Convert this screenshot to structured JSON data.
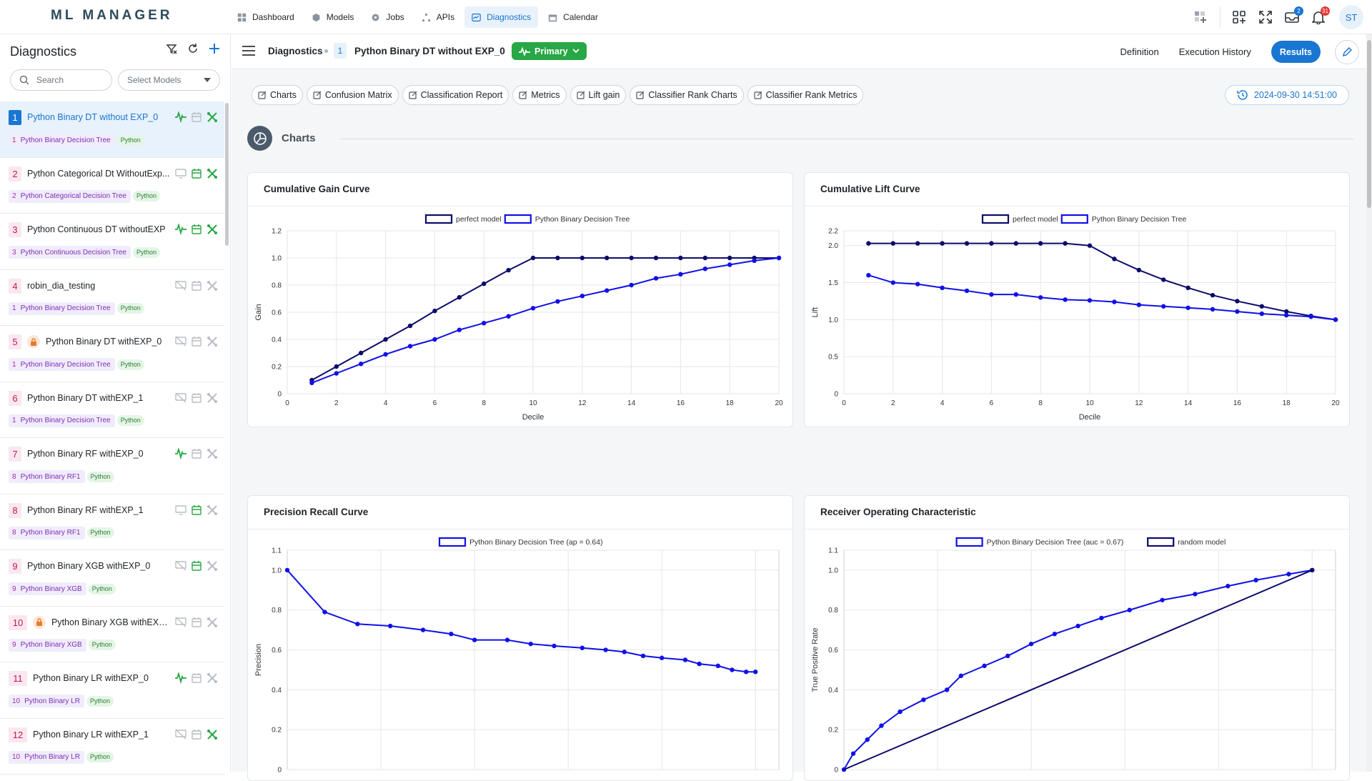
{
  "app": {
    "brand": "ML MANAGER"
  },
  "nav": [
    {
      "label": "Dashboard",
      "icon": "dashboard-icon"
    },
    {
      "label": "Models",
      "icon": "models-icon"
    },
    {
      "label": "Jobs",
      "icon": "jobs-icon"
    },
    {
      "label": "APIs",
      "icon": "apis-icon"
    },
    {
      "label": "Diagnostics",
      "icon": "diagnostics-icon",
      "active": true
    },
    {
      "label": "Calendar",
      "icon": "calendar-icon"
    }
  ],
  "topbar": {
    "messages_badge": "2",
    "notifications_badge": "31",
    "avatar": "ST"
  },
  "colors": {
    "accent": "#1976d2",
    "success": "#28a745",
    "pink": "#c2185b",
    "purple": "#7b2fb5",
    "perfect_line": "#0b0b6b",
    "model_line": "#1010e8"
  },
  "sidebar": {
    "title": "Diagnostics",
    "search_placeholder": "Search",
    "select_placeholder": "Select Models",
    "items": [
      {
        "num": "1",
        "name": "Python Binary DT without EXP_0",
        "sub_num": "1",
        "model": "Python Binary Decision Tree",
        "lang": "Python",
        "lock": false,
        "selected": true,
        "status": [
          "pulse-green",
          "calendar-grey",
          "tools-green"
        ]
      },
      {
        "num": "2",
        "name": "Python Categorical Dt WithoutExp...",
        "sub_num": "2",
        "model": "Python Categorical Decision Tree",
        "lang": "Python",
        "lock": false,
        "selected": false,
        "status": [
          "monitor-grey",
          "calendar-green",
          "tools-green"
        ]
      },
      {
        "num": "3",
        "name": "Python Continuous DT withoutEXP",
        "sub_num": "3",
        "model": "Python Continuous Decision Tree",
        "lang": "Python",
        "lock": false,
        "selected": false,
        "status": [
          "pulse-green",
          "calendar-green",
          "tools-green"
        ]
      },
      {
        "num": "4",
        "name": "robin_dia_testing",
        "sub_num": "1",
        "model": "Python Binary Decision Tree",
        "lang": "Python",
        "lock": false,
        "selected": false,
        "status": [
          "monitor-off-grey",
          "calendar-grey",
          "tools-grey"
        ]
      },
      {
        "num": "5",
        "name": "Python Binary DT withEXP_0",
        "sub_num": "1",
        "model": "Python Binary Decision Tree",
        "lang": "Python",
        "lock": true,
        "selected": false,
        "status": [
          "monitor-off-grey",
          "calendar-grey",
          "tools-grey"
        ]
      },
      {
        "num": "6",
        "name": "Python Binary DT withEXP_1",
        "sub_num": "1",
        "model": "Python Binary Decision Tree",
        "lang": "Python",
        "lock": false,
        "selected": false,
        "status": [
          "monitor-off-grey",
          "calendar-grey",
          "tools-grey"
        ]
      },
      {
        "num": "7",
        "name": "Python Binary RF withEXP_0",
        "sub_num": "8",
        "model": "Python Binary RF1",
        "lang": "Python",
        "lock": false,
        "selected": false,
        "status": [
          "pulse-green",
          "calendar-grey",
          "tools-grey"
        ]
      },
      {
        "num": "8",
        "name": "Python Binary RF withEXP_1",
        "sub_num": "8",
        "model": "Python Binary RF1",
        "lang": "Python",
        "lock": false,
        "selected": false,
        "status": [
          "monitor-grey",
          "calendar-green",
          "tools-grey"
        ]
      },
      {
        "num": "9",
        "name": "Python Binary XGB withEXP_0",
        "sub_num": "9",
        "model": "Python Binary XGB",
        "lang": "Python",
        "lock": false,
        "selected": false,
        "status": [
          "monitor-off-grey",
          "calendar-green",
          "tools-grey"
        ]
      },
      {
        "num": "10",
        "name": "Python Binary XGB withEXP_1",
        "sub_num": "9",
        "model": "Python Binary XGB",
        "lang": "Python",
        "lock": true,
        "selected": false,
        "status": [
          "monitor-off-grey",
          "calendar-grey",
          "tools-grey"
        ]
      },
      {
        "num": "11",
        "name": "Python Binary LR withEXP_0",
        "sub_num": "10",
        "model": "Python Binary LR",
        "lang": "Python",
        "lock": false,
        "selected": false,
        "status": [
          "pulse-green",
          "calendar-grey",
          "tools-grey"
        ]
      },
      {
        "num": "12",
        "name": "Python Binary LR withEXP_1",
        "sub_num": "10",
        "model": "Python Binary LR",
        "lang": "Python",
        "lock": false,
        "selected": false,
        "status": [
          "monitor-off-grey",
          "calendar-grey",
          "tools-green"
        ]
      }
    ]
  },
  "header": {
    "breadcrumb": "Diagnostics",
    "model_num": "1",
    "model_name": "Python Binary DT without EXP_0",
    "primary_label": "Primary",
    "definition_label": "Definition",
    "history_label": "Execution History",
    "results_label": "Results"
  },
  "tabs": [
    "Charts",
    "Confusion Matrix",
    "Classification Report",
    "Metrics",
    "Lift gain",
    "Classifier Rank Charts",
    "Classifier Rank Metrics"
  ],
  "run_date": "2024-09-30 14:51:00",
  "section_title": "Charts",
  "chart_data": [
    {
      "type": "line",
      "title": "Cumulative Gain Curve",
      "xlabel": "Decile",
      "ylabel": "Gain",
      "xlim": [
        0,
        20
      ],
      "ylim": [
        0,
        1.2
      ],
      "xticks": [
        "0",
        "2",
        "4",
        "6",
        "8",
        "10",
        "12",
        "14",
        "16",
        "18",
        "20"
      ],
      "yticks": [
        "0",
        "0.2",
        "0.4",
        "0.6",
        "0.8",
        "1.0",
        "1.2"
      ],
      "legend": "top-center",
      "series": [
        {
          "name": "perfect model",
          "x": [
            1,
            2,
            3,
            4,
            5,
            6,
            7,
            8,
            9,
            10,
            11,
            12,
            13,
            14,
            15,
            16,
            17,
            18,
            19,
            20
          ],
          "y": [
            0.1,
            0.2,
            0.3,
            0.4,
            0.5,
            0.61,
            0.71,
            0.81,
            0.91,
            1.0,
            1.0,
            1.0,
            1.0,
            1.0,
            1.0,
            1.0,
            1.0,
            1.0,
            1.0,
            1.0
          ]
        },
        {
          "name": "Python Binary Decision Tree",
          "x": [
            1,
            2,
            3,
            4,
            5,
            6,
            7,
            8,
            9,
            10,
            11,
            12,
            13,
            14,
            15,
            16,
            17,
            18,
            19,
            20
          ],
          "y": [
            0.08,
            0.15,
            0.22,
            0.29,
            0.35,
            0.4,
            0.47,
            0.52,
            0.57,
            0.63,
            0.68,
            0.72,
            0.76,
            0.8,
            0.85,
            0.88,
            0.92,
            0.95,
            0.98,
            1.0
          ]
        }
      ]
    },
    {
      "type": "line",
      "title": "Cumulative Lift Curve",
      "xlabel": "Decile",
      "ylabel": "Lift",
      "xlim": [
        0,
        20
      ],
      "ylim": [
        0,
        2.2
      ],
      "xticks": [
        "0",
        "2",
        "4",
        "6",
        "8",
        "10",
        "12",
        "14",
        "16",
        "18",
        "20"
      ],
      "yticks": [
        "0",
        "0.5",
        "1.0",
        "1.5",
        "2.0",
        "2.2"
      ],
      "legend": "top-center",
      "series": [
        {
          "name": "perfect model",
          "x": [
            1,
            2,
            3,
            4,
            5,
            6,
            7,
            8,
            9,
            10,
            11,
            12,
            13,
            14,
            15,
            16,
            17,
            18,
            19,
            20
          ],
          "y": [
            2.03,
            2.03,
            2.03,
            2.03,
            2.03,
            2.03,
            2.03,
            2.03,
            2.03,
            2.0,
            1.82,
            1.67,
            1.54,
            1.43,
            1.33,
            1.25,
            1.18,
            1.11,
            1.05,
            1.0
          ]
        },
        {
          "name": "Python Binary Decision Tree",
          "x": [
            1,
            2,
            3,
            4,
            5,
            6,
            7,
            8,
            9,
            10,
            11,
            12,
            13,
            14,
            15,
            16,
            17,
            18,
            19,
            20
          ],
          "y": [
            1.6,
            1.5,
            1.48,
            1.43,
            1.39,
            1.34,
            1.34,
            1.3,
            1.27,
            1.26,
            1.24,
            1.2,
            1.18,
            1.16,
            1.14,
            1.11,
            1.08,
            1.06,
            1.04,
            1.0
          ]
        }
      ]
    },
    {
      "type": "line",
      "title": "Precision Recall Curve",
      "xlabel": "",
      "ylabel": "Precision",
      "xlim": [
        0,
        1.05
      ],
      "ylim": [
        0,
        1.1
      ],
      "xticks": [],
      "yticks": [
        "0",
        "0.2",
        "0.4",
        "0.6",
        "0.8",
        "1.0",
        "1.1"
      ],
      "legend": "top-center",
      "series": [
        {
          "name": "Python Binary Decision Tree",
          "legend_label": "Python Binary Decision Tree  (ap = 0.64)",
          "x": [
            0.0,
            0.08,
            0.15,
            0.22,
            0.29,
            0.35,
            0.4,
            0.47,
            0.52,
            0.57,
            0.63,
            0.68,
            0.72,
            0.76,
            0.8,
            0.85,
            0.88,
            0.92,
            0.95,
            0.98,
            1.0
          ],
          "y": [
            1.0,
            0.79,
            0.73,
            0.72,
            0.7,
            0.68,
            0.65,
            0.65,
            0.63,
            0.62,
            0.61,
            0.6,
            0.59,
            0.57,
            0.56,
            0.55,
            0.53,
            0.52,
            0.5,
            0.49,
            0.49
          ]
        }
      ]
    },
    {
      "type": "line",
      "title": "Receiver Operating Characteristic",
      "xlabel": "",
      "ylabel": "True Positive Rate",
      "xlim": [
        0,
        1.05
      ],
      "ylim": [
        0,
        1.1
      ],
      "xticks": [],
      "yticks": [
        "0",
        "0.2",
        "0.4",
        "0.6",
        "0.8",
        "1.0",
        "1.1"
      ],
      "legend": "top-center",
      "series": [
        {
          "name": "Python Binary Decision Tree",
          "legend_label": "Python Binary Decision Tree  (auc = 0.67)",
          "x": [
            0.0,
            0.02,
            0.05,
            0.08,
            0.12,
            0.17,
            0.22,
            0.25,
            0.3,
            0.35,
            0.4,
            0.45,
            0.5,
            0.55,
            0.61,
            0.68,
            0.75,
            0.82,
            0.88,
            0.95,
            1.0
          ],
          "y": [
            0.0,
            0.08,
            0.15,
            0.22,
            0.29,
            0.35,
            0.4,
            0.47,
            0.52,
            0.57,
            0.63,
            0.68,
            0.72,
            0.76,
            0.8,
            0.85,
            0.88,
            0.92,
            0.95,
            0.98,
            1.0
          ]
        },
        {
          "name": "random model",
          "x": [
            0,
            1.0
          ],
          "y": [
            0,
            1.0
          ]
        }
      ]
    }
  ]
}
